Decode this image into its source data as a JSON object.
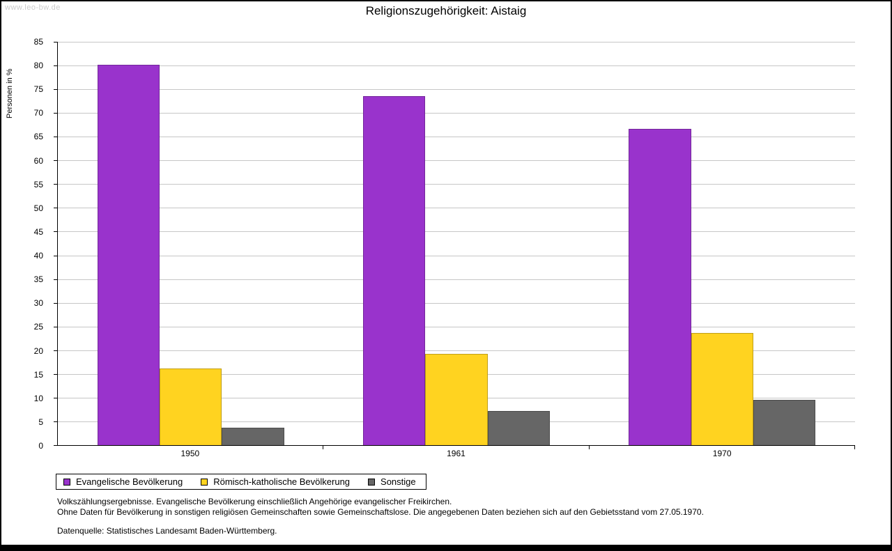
{
  "watermark": "www.leo-bw.de",
  "title": "Religionszugehörigkeit: Aistaig",
  "chart_data": {
    "type": "bar",
    "categories": [
      "1950",
      "1961",
      "1970"
    ],
    "series": [
      {
        "name": "Evangelische Bevölkerung",
        "color": "#9933cc",
        "values": [
          80.2,
          73.5,
          66.6
        ]
      },
      {
        "name": "Römisch-katholische Bevölkerung",
        "color": "#ffd320",
        "values": [
          16.2,
          19.2,
          23.7
        ]
      },
      {
        "name": "Sonstige",
        "color": "#666666",
        "values": [
          3.7,
          7.2,
          9.5
        ]
      }
    ],
    "title": "Religionszugehörigkeit: Aistaig",
    "xlabel": "",
    "ylabel": "Personen in %",
    "ylim": [
      0,
      85
    ],
    "ytick_step": 5,
    "grid": true,
    "legend_position": "bottom-left"
  },
  "footnotes": [
    "Volkszählungsergebnisse. Evangelische Bevölkerung einschließlich Angehörige evangelischer Freikirchen.",
    "Ohne Daten für Bevölkerung in sonstigen religiösen Gemeinschaften sowie Gemeinschaftslose. Die angegebenen Daten beziehen sich auf den Gebietsstand vom 27.05.1970.",
    "Datenquelle: Statistisches Landesamt Baden-Württemberg."
  ]
}
